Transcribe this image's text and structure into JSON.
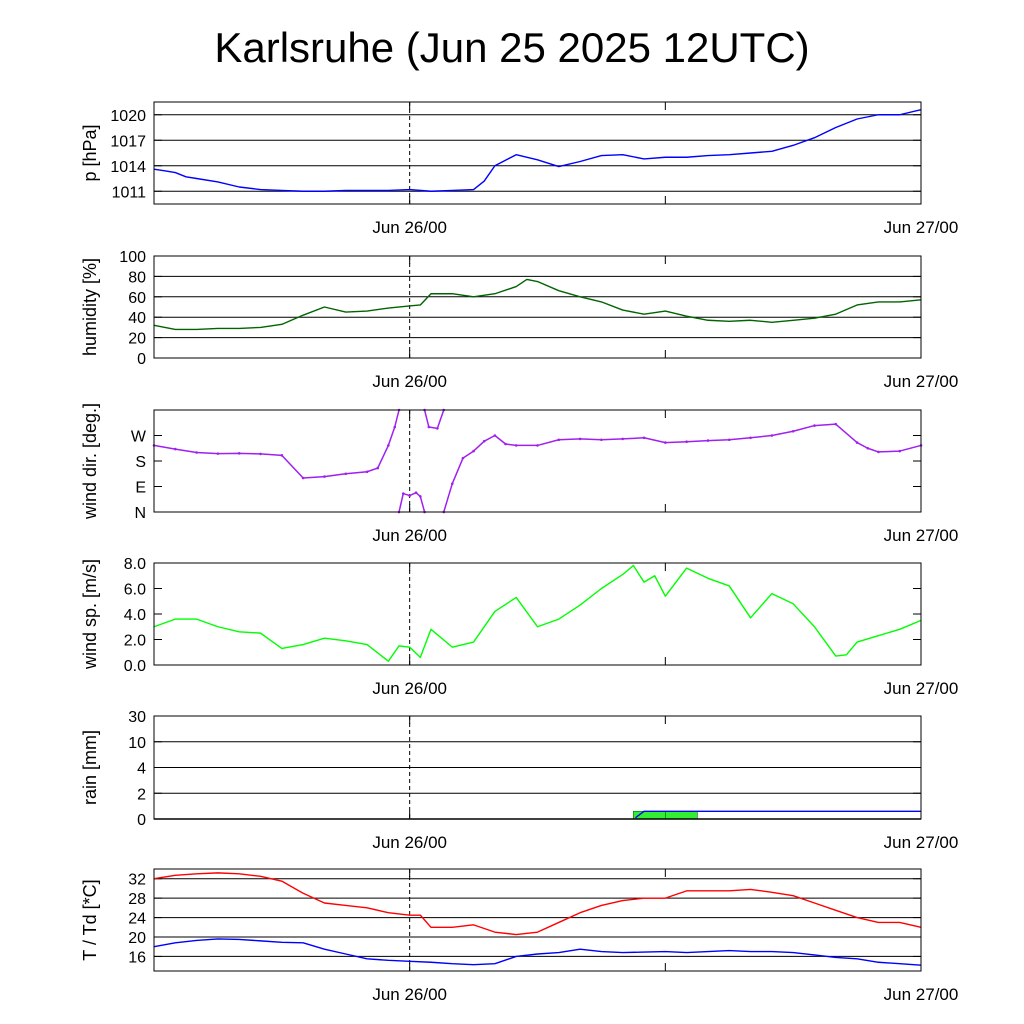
{
  "title": "Karlsruhe (Jun 25 2025 12UTC)",
  "x_ticks": [
    "Jun 26/00",
    "Jun 27/00"
  ],
  "x_tick_hours": [
    12,
    36
  ],
  "x_range_hours": [
    0,
    36
  ],
  "chart_data": [
    {
      "type": "line",
      "ylabel": "p [hPa]",
      "ylim": [
        1009.5,
        1021.5
      ],
      "yticks": [
        1011,
        1014,
        1017,
        1020
      ],
      "ytick_labels": [
        "1011",
        "1014",
        "1017",
        "1020"
      ],
      "grid": true,
      "series": [
        {
          "color": "#0000ff",
          "x": [
            0,
            0.5,
            1,
            1.5,
            2,
            3,
            4,
            5,
            6,
            7,
            8,
            9,
            10,
            11,
            12,
            13,
            14,
            15,
            15.5,
            16,
            17,
            18,
            19,
            20,
            21,
            22,
            23,
            24,
            25,
            26,
            27,
            28,
            29,
            30,
            31,
            32,
            33,
            34,
            35,
            36
          ],
          "y": [
            1013.6,
            1013.4,
            1013.2,
            1012.7,
            1012.5,
            1012.1,
            1011.5,
            1011.2,
            1011.1,
            1011.0,
            1011.0,
            1011.1,
            1011.1,
            1011.1,
            1011.2,
            1011.0,
            1011.1,
            1011.2,
            1012.2,
            1014.0,
            1015.3,
            1014.7,
            1013.9,
            1014.5,
            1015.2,
            1015.3,
            1014.8,
            1015.0,
            1015.0,
            1015.2,
            1015.3,
            1015.5,
            1015.7,
            1016.4,
            1017.3,
            1018.5,
            1019.5,
            1020.0,
            1020.0,
            1020.6
          ]
        }
      ]
    },
    {
      "type": "line",
      "ylabel": "humidity [%]",
      "ylim": [
        0,
        100
      ],
      "yticks": [
        0,
        20,
        40,
        60,
        80,
        100
      ],
      "ytick_labels": [
        "0",
        "20",
        "40",
        "60",
        "80",
        "100"
      ],
      "grid": true,
      "series": [
        {
          "color": "#006400",
          "x": [
            0,
            1,
            2,
            3,
            4,
            5,
            6,
            7,
            8,
            9,
            10,
            11,
            12,
            12.5,
            13,
            14,
            15,
            16,
            17,
            17.5,
            18,
            19,
            20,
            21,
            22,
            23,
            24,
            25,
            26,
            27,
            28,
            29,
            30,
            31,
            32,
            33,
            34,
            35,
            36
          ],
          "y": [
            32,
            28,
            28,
            29,
            29,
            30,
            33,
            42,
            50,
            45,
            46,
            49,
            51,
            52,
            63,
            63,
            60,
            63,
            70,
            77,
            75,
            66,
            60,
            55,
            47,
            43,
            46,
            41,
            37,
            36,
            37,
            35,
            37,
            39,
            43,
            52,
            55,
            55,
            57
          ]
        }
      ]
    },
    {
      "type": "scatter",
      "ylabel": "wind dir. [deg.]",
      "ylim": [
        0,
        360
      ],
      "yticks": [
        0,
        90,
        180,
        270
      ],
      "ytick_labels": [
        "N",
        "E",
        "S",
        "W"
      ],
      "grid": false,
      "series": [
        {
          "color": "#a020f0",
          "x": [
            0,
            1,
            2,
            3,
            4,
            5,
            6,
            7,
            8,
            9,
            10,
            10.5,
            11,
            11.3,
            11.5
          ],
          "y": [
            235,
            222,
            210,
            206,
            207,
            205,
            200,
            120,
            125,
            135,
            142,
            155,
            235,
            300,
            360
          ]
        },
        {
          "color": "#a020f0",
          "x": [
            11.5,
            11.7,
            12,
            12.3,
            12.5,
            12.7
          ],
          "y": [
            0,
            65,
            58,
            68,
            55,
            0
          ]
        },
        {
          "color": "#a020f0",
          "x": [
            12.7,
            12.9,
            13.3,
            13.6
          ],
          "y": [
            360,
            300,
            295,
            360
          ]
        },
        {
          "color": "#a020f0",
          "x": [
            13.6,
            14,
            14.5,
            15,
            15.5,
            16,
            16.5,
            17,
            18,
            19,
            20,
            21,
            22,
            23,
            24,
            25,
            26,
            27,
            28,
            29,
            30,
            31,
            32,
            33,
            33.5,
            34,
            35,
            36
          ],
          "y": [
            0,
            100,
            190,
            215,
            250,
            270,
            240,
            235,
            235,
            255,
            258,
            255,
            258,
            262,
            245,
            248,
            252,
            255,
            262,
            270,
            285,
            305,
            310,
            245,
            225,
            212,
            215,
            235
          ]
        }
      ]
    },
    {
      "type": "line",
      "ylabel": "wind sp. [m/s]",
      "ylim": [
        0,
        8
      ],
      "yticks": [
        0,
        2,
        4,
        6,
        8
      ],
      "ytick_labels": [
        "0.0",
        "2.0",
        "4.0",
        "6.0",
        "8.0"
      ],
      "grid": false,
      "series": [
        {
          "color": "#00ff00",
          "x": [
            0,
            1,
            2,
            3,
            4,
            5,
            6,
            7,
            8,
            9,
            10,
            11,
            11.5,
            12,
            12.5,
            13,
            14,
            15,
            16,
            17,
            18,
            19,
            20,
            21,
            22,
            22.5,
            23,
            23.5,
            24,
            25,
            26,
            27,
            28,
            29,
            30,
            31,
            32,
            32.5,
            33,
            34,
            35,
            36
          ],
          "y": [
            3.0,
            3.6,
            3.6,
            3.0,
            2.6,
            2.5,
            1.3,
            1.6,
            2.1,
            1.9,
            1.6,
            0.3,
            1.5,
            1.4,
            0.6,
            2.8,
            1.4,
            1.8,
            4.2,
            5.3,
            3.0,
            3.6,
            4.7,
            6.0,
            7.1,
            7.8,
            6.5,
            7.0,
            5.4,
            7.6,
            6.8,
            6.2,
            3.7,
            5.6,
            4.8,
            3.0,
            0.7,
            0.8,
            1.8,
            2.3,
            2.8,
            3.5
          ]
        }
      ]
    },
    {
      "type": "area",
      "ylabel": "rain [mm]",
      "yticks": [
        0,
        1,
        2,
        3,
        4
      ],
      "ytick_labels": [
        "0",
        "2",
        "4",
        "10",
        "30"
      ],
      "ylim": [
        0,
        4
      ],
      "grid": true,
      "bars": [
        {
          "x0": 22.5,
          "x1": 24,
          "value": 0.3,
          "color": "#33ee33"
        },
        {
          "x0": 24,
          "x1": 25.5,
          "value": 0.3,
          "color": "#33ee33"
        }
      ],
      "series": [
        {
          "color": "#0000ff",
          "x": [
            22.6,
            23,
            24,
            36
          ],
          "y": [
            0.05,
            0.3,
            0.3,
            0.3
          ]
        }
      ]
    },
    {
      "type": "line",
      "ylabel": "T / Td [*C]",
      "ylim": [
        13,
        34
      ],
      "yticks": [
        16,
        20,
        24,
        28,
        32
      ],
      "ytick_labels": [
        "16",
        "20",
        "24",
        "28",
        "32"
      ],
      "grid": true,
      "series": [
        {
          "color": "#ff0000",
          "x": [
            0,
            1,
            2,
            3,
            4,
            5,
            6,
            7,
            8,
            9,
            10,
            11,
            12,
            12.5,
            13,
            14,
            15,
            16,
            17,
            18,
            19,
            20,
            21,
            22,
            23,
            24,
            25,
            26,
            27,
            28,
            29,
            30,
            31,
            32,
            33,
            34,
            35,
            36
          ],
          "y": [
            32,
            32.7,
            33,
            33.2,
            33.0,
            32.5,
            31.5,
            29,
            27,
            26.5,
            26,
            25,
            24.5,
            24.5,
            22,
            22,
            22.5,
            21,
            20.5,
            21,
            23,
            25,
            26.5,
            27.5,
            28,
            28,
            29.5,
            29.5,
            29.5,
            29.8,
            29.2,
            28.5,
            27,
            25.5,
            24,
            23,
            23,
            22
          ]
        },
        {
          "color": "#0000ff",
          "x": [
            0,
            1,
            2,
            3,
            4,
            5,
            6,
            7,
            8,
            9,
            10,
            11,
            12,
            13,
            14,
            15,
            16,
            17,
            18,
            19,
            20,
            21,
            22,
            23,
            24,
            25,
            26,
            27,
            28,
            29,
            30,
            31,
            32,
            33,
            34,
            35,
            36
          ],
          "y": [
            18,
            18.8,
            19.3,
            19.6,
            19.5,
            19.2,
            18.9,
            18.8,
            17.5,
            16.5,
            15.5,
            15.2,
            15,
            14.8,
            14.5,
            14.3,
            14.5,
            16,
            16.5,
            16.8,
            17.5,
            17,
            16.8,
            16.9,
            17,
            16.8,
            17,
            17.2,
            17,
            17,
            16.8,
            16.3,
            15.8,
            15.5,
            14.8,
            14.5,
            14.2
          ]
        }
      ]
    }
  ]
}
